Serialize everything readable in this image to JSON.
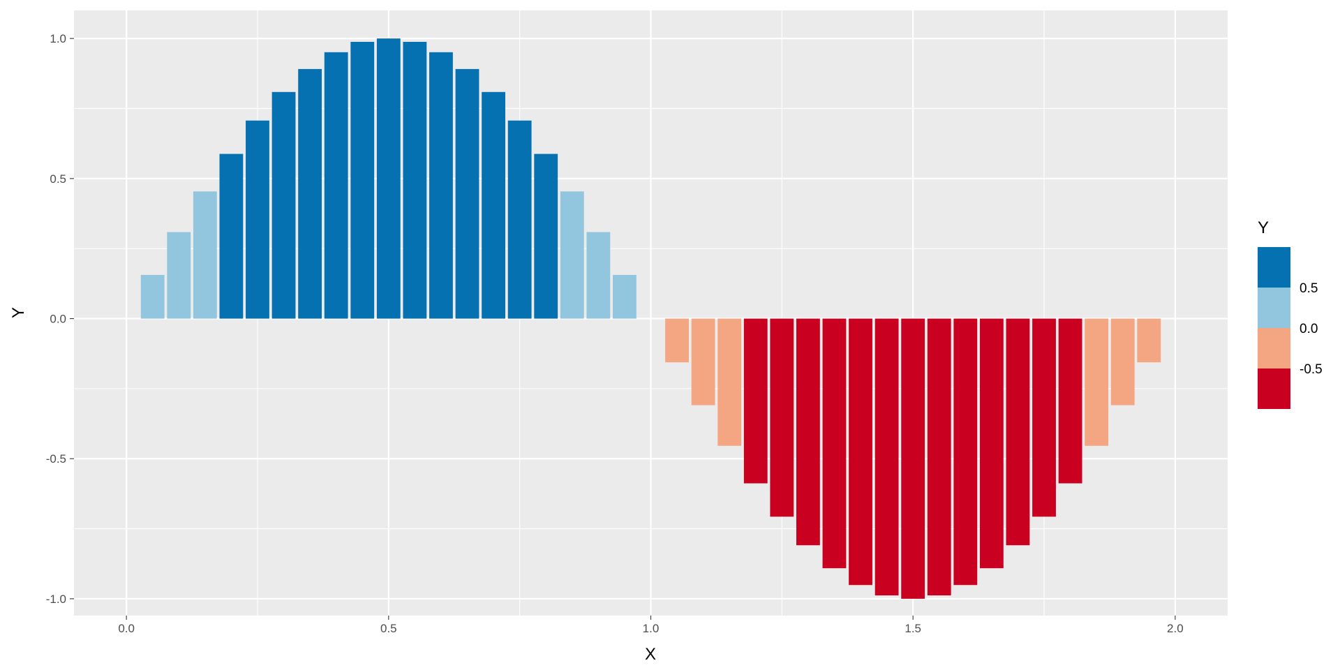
{
  "chart_data": {
    "type": "bar",
    "xlabel": "X",
    "ylabel": "Y",
    "xlim": [
      -0.1,
      2.1
    ],
    "ylim": [
      -1.06,
      1.1
    ],
    "x_ticks": [
      0.0,
      0.5,
      1.0,
      1.5,
      2.0
    ],
    "x_tick_labels": [
      "0.0",
      "0.5",
      "1.0",
      "1.5",
      "2.0"
    ],
    "y_ticks": [
      -1.0,
      -0.5,
      0.0,
      0.5,
      1.0
    ],
    "y_tick_labels": [
      "-1.0",
      "-0.5",
      "0.0",
      "0.5",
      "1.0"
    ],
    "grid": true,
    "bar_width": 0.045,
    "x": [
      0.05,
      0.1,
      0.15,
      0.2,
      0.25,
      0.3,
      0.35,
      0.4,
      0.45,
      0.5,
      0.55,
      0.6,
      0.65,
      0.7,
      0.75,
      0.8,
      0.85,
      0.9,
      0.95,
      1.05,
      1.1,
      1.15,
      1.2,
      1.25,
      1.3,
      1.35,
      1.4,
      1.45,
      1.5,
      1.55,
      1.6,
      1.65,
      1.7,
      1.75,
      1.8,
      1.85,
      1.9,
      1.95
    ],
    "values": [
      0.156,
      0.309,
      0.454,
      0.588,
      0.707,
      0.809,
      0.891,
      0.951,
      0.988,
      1.0,
      0.988,
      0.951,
      0.891,
      0.809,
      0.707,
      0.588,
      0.454,
      0.309,
      0.156,
      -0.156,
      -0.309,
      -0.454,
      -0.588,
      -0.707,
      -0.809,
      -0.891,
      -0.951,
      -0.988,
      -1.0,
      -0.988,
      -0.951,
      -0.891,
      -0.809,
      -0.707,
      -0.588,
      -0.454,
      -0.309,
      -0.156
    ],
    "legend": {
      "title": "Y",
      "position": "right",
      "bins": [
        {
          "min": 0.5,
          "max": 1.0,
          "color": "#0571b0"
        },
        {
          "min": 0.0,
          "max": 0.5,
          "color": "#92c5de"
        },
        {
          "min": -0.5,
          "max": 0.0,
          "color": "#f4a582"
        },
        {
          "min": -1.0,
          "max": -0.5,
          "color": "#ca0020"
        }
      ],
      "break_labels": [
        "0.5",
        "0.0",
        "-0.5"
      ]
    },
    "panel_background": "#ebebeb",
    "grid_color": "#ffffff"
  }
}
